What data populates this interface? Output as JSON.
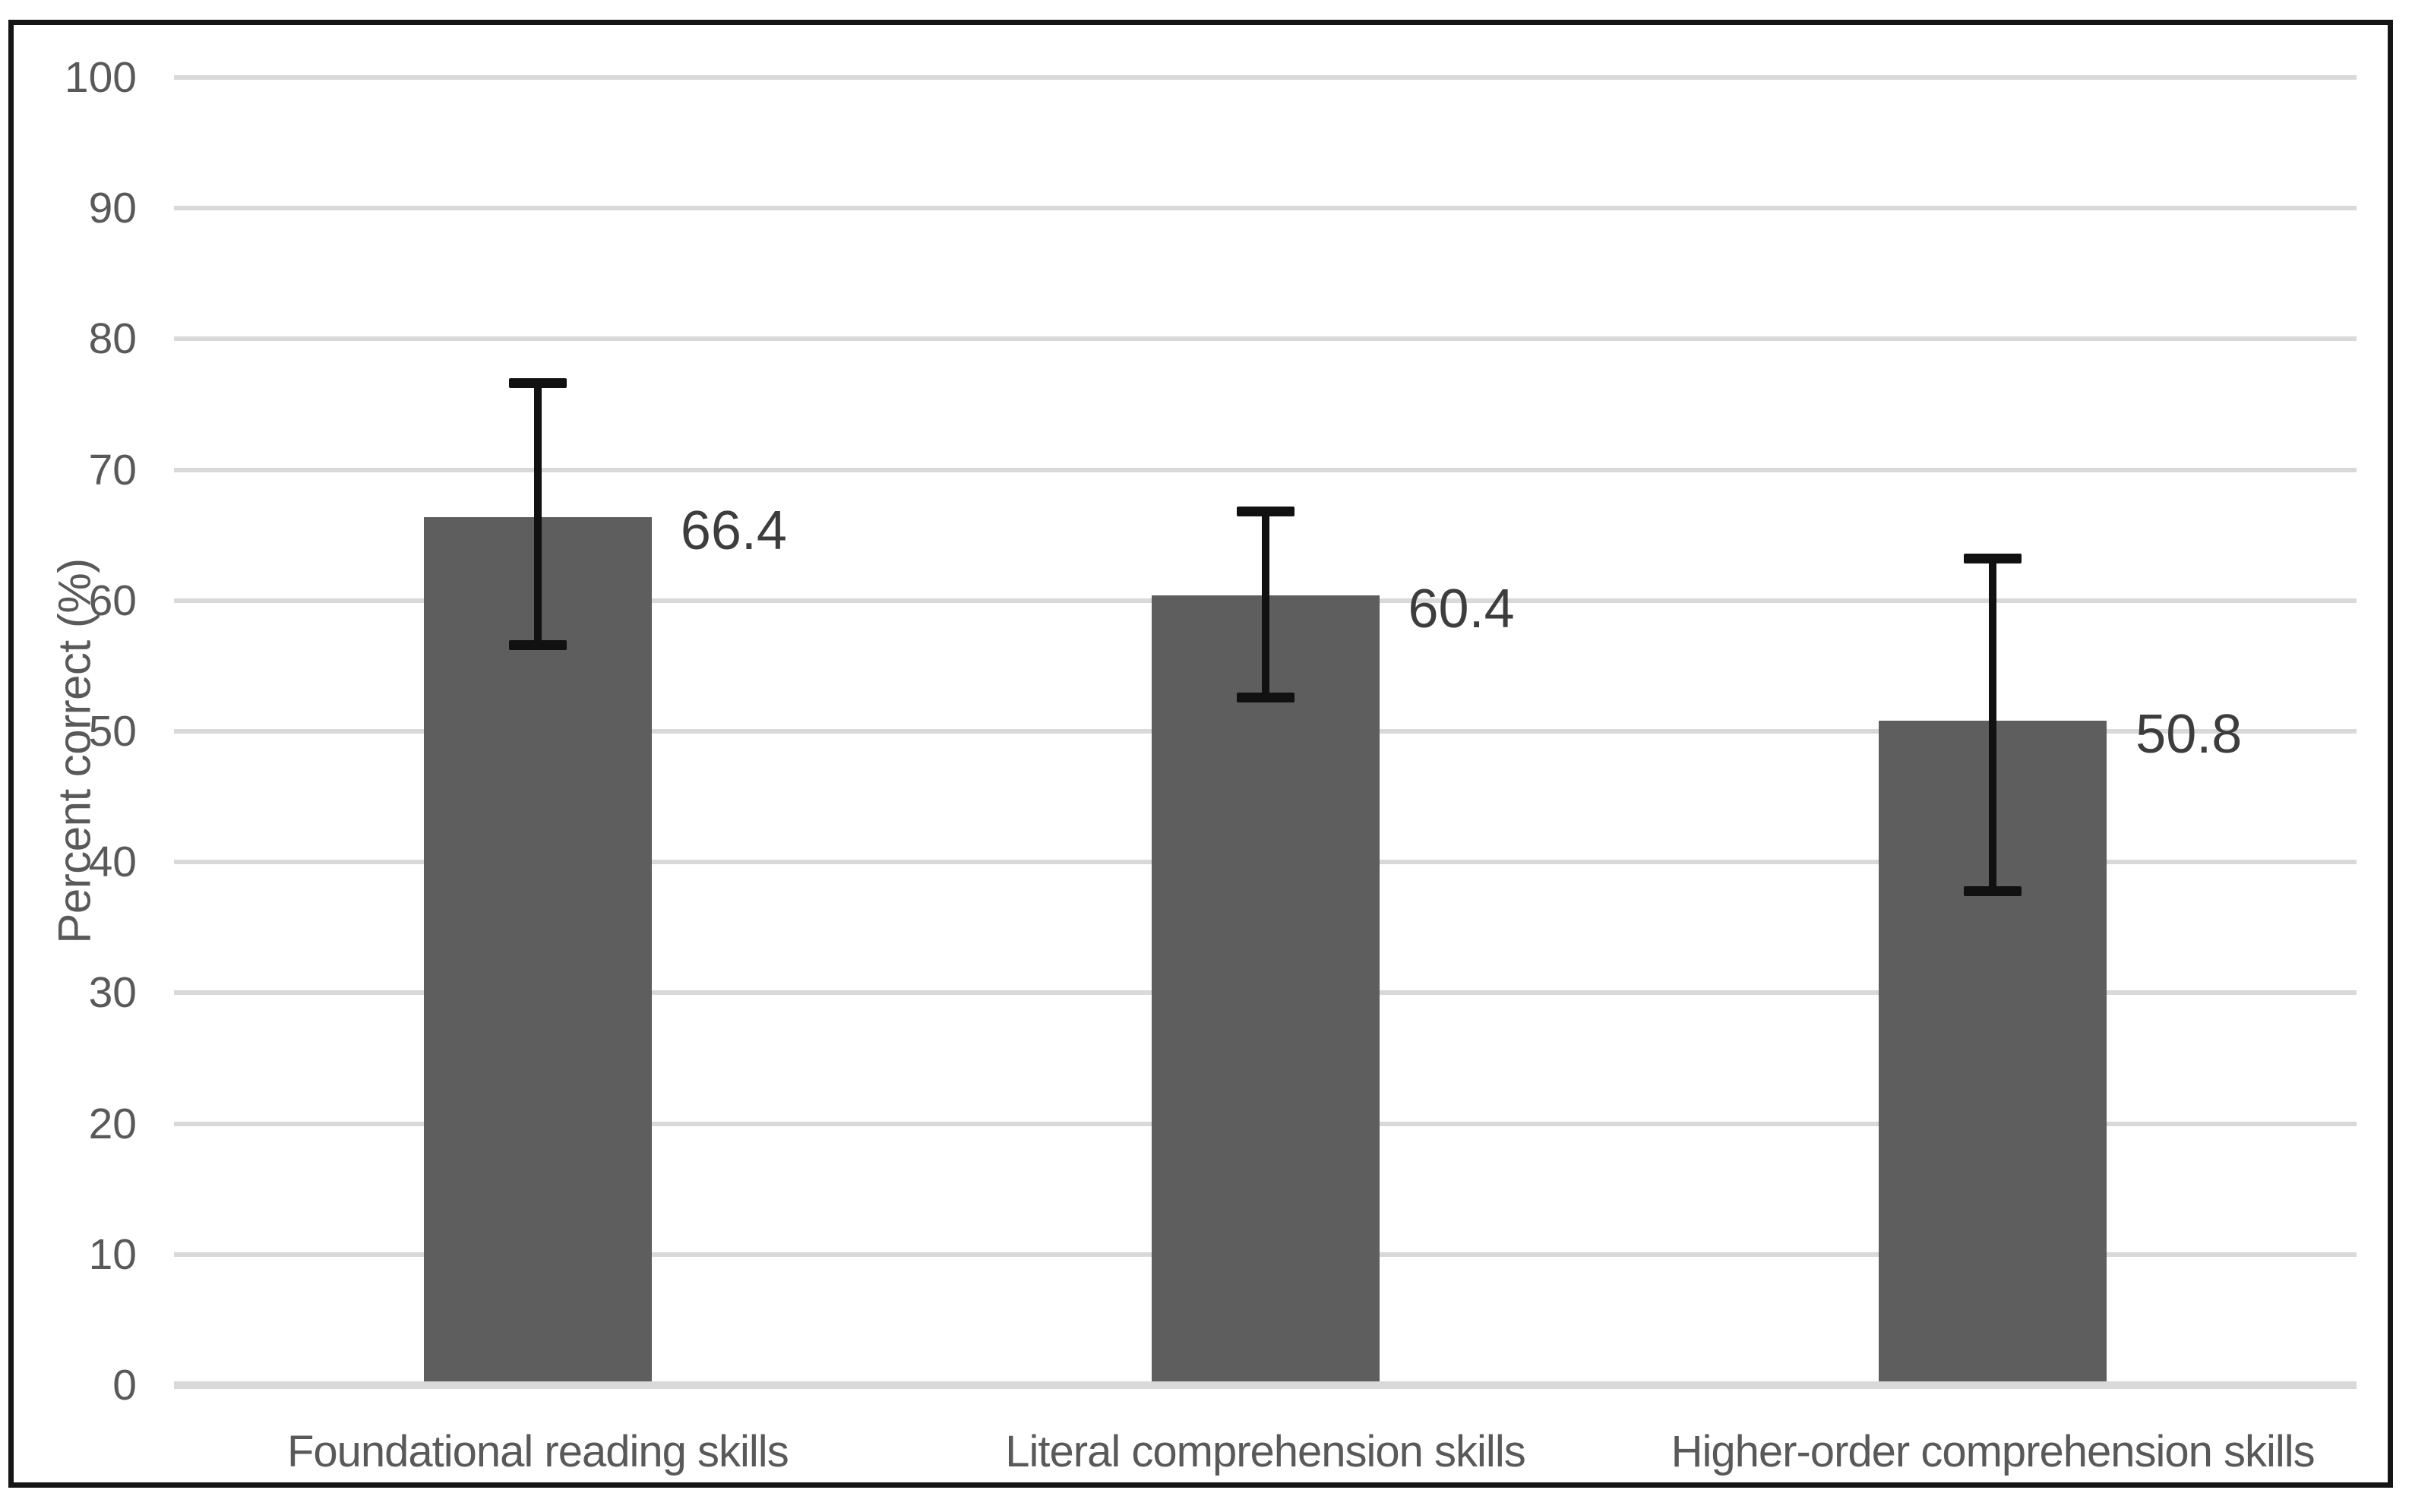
{
  "chart_data": {
    "type": "bar",
    "title": "",
    "xlabel": "",
    "ylabel": "Percent correct (%)",
    "ylim": [
      0,
      100
    ],
    "ytick_interval": 10,
    "yticks": [
      "0",
      "10",
      "20",
      "30",
      "40",
      "50",
      "60",
      "70",
      "80",
      "90",
      "100"
    ],
    "grid": "horizontal",
    "legend": "none",
    "categories": [
      "Foundational reading skills",
      "Literal comprehension skills",
      "Higher-order comprehension skills"
    ],
    "values": [
      66.4,
      60.4,
      50.8
    ],
    "data_labels": [
      "66.4",
      "60.4",
      "50.8"
    ],
    "error_bars": {
      "style": "capped-whiskers",
      "whisker_high": [
        76.6,
        66.8,
        63.2
      ],
      "whisker_low": [
        56.6,
        52.6,
        37.8
      ]
    },
    "colors": {
      "bar": "#5e5e5e",
      "gridline": "#d9d9d9",
      "axis_baseline": "#d9d9d9",
      "error_bar": "#111111",
      "tick_text": "#595959",
      "category_text": "#595959",
      "data_label_text": "#3d3d3d",
      "frame_border": "#151515",
      "background": "#ffffff"
    }
  }
}
